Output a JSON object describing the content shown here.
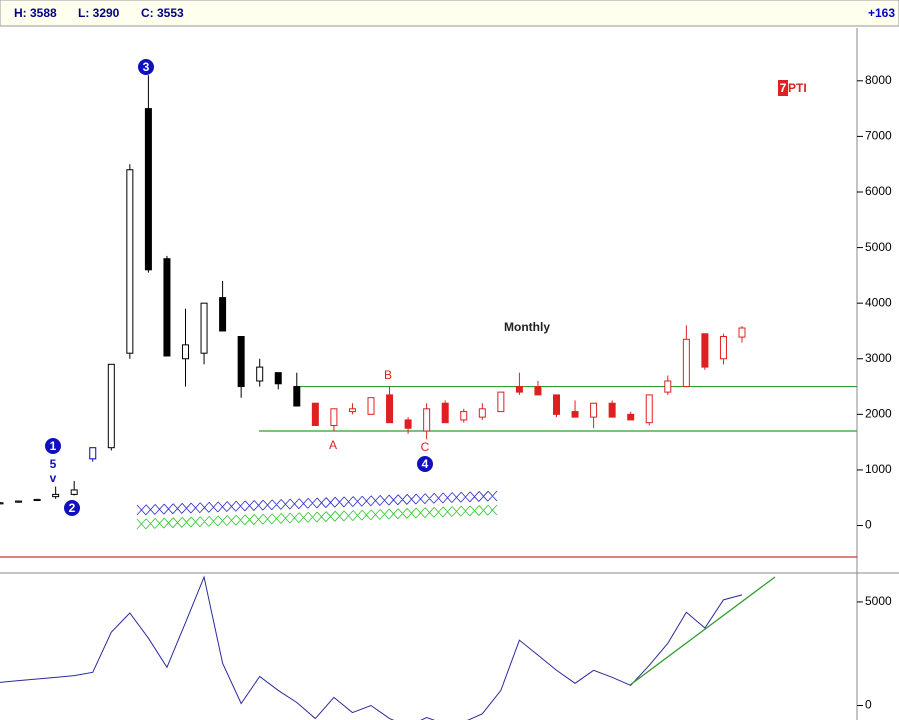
{
  "chart_data": [
    {
      "type": "candlestick",
      "header": [
        "H: 3588",
        "L: 3290",
        "C: 3553",
        "+163"
      ],
      "open": [
        390,
        420,
        450,
        520,
        560,
        1200,
        1400,
        3100,
        7500,
        4800,
        3000,
        3100,
        4100,
        3400,
        2600,
        2750,
        2500,
        2200,
        1800,
        2050,
        2000,
        2350,
        1900,
        1700,
        2200,
        1900,
        1950,
        2050,
        2500,
        2500,
        2350,
        2050,
        1950,
        2200,
        2000,
        1850,
        2400,
        2500,
        3450,
        3000,
        3390
      ],
      "high": [
        420,
        450,
        480,
        700,
        800,
        1400,
        2900,
        6500,
        8100,
        4850,
        3900,
        4000,
        4400,
        3400,
        3000,
        2750,
        2750,
        2200,
        2100,
        2200,
        2300,
        2500,
        1950,
        2200,
        2250,
        2100,
        2200,
        2400,
        2750,
        2600,
        2350,
        2250,
        2200,
        2250,
        2050,
        2350,
        2700,
        3600,
        3450,
        3450,
        3588
      ],
      "low": [
        380,
        410,
        440,
        480,
        540,
        1150,
        1350,
        3000,
        4550,
        3050,
        2500,
        2900,
        3500,
        2300,
        2500,
        2450,
        2150,
        1800,
        1700,
        2000,
        2000,
        1850,
        1650,
        1550,
        1850,
        1850,
        1900,
        2050,
        2350,
        2350,
        1950,
        1950,
        1750,
        1950,
        1900,
        1800,
        2350,
        2500,
        2800,
        2900,
        3290
      ],
      "close": [
        410,
        440,
        470,
        560,
        640,
        1400,
        2900,
        6400,
        4600,
        3050,
        3250,
        4000,
        3500,
        2500,
        2850,
        2550,
        2150,
        1800,
        2100,
        2100,
        2300,
        1850,
        1750,
        2100,
        1850,
        2050,
        2100,
        2400,
        2400,
        2350,
        2000,
        1950,
        2200,
        1950,
        1900,
        2350,
        2600,
        3350,
        2850,
        3400,
        3553
      ],
      "colors": [
        "#000000",
        "#000000",
        "#000000",
        "#000000",
        "#000000",
        "#0000cc",
        "#000000",
        "#000000",
        "#000000",
        "#000000",
        "#000000",
        "#000000",
        "#000000",
        "#000000",
        "#000000",
        "#000000",
        "#000000",
        "#e02020",
        "#e02020",
        "#e02020",
        "#e02020",
        "#e02020",
        "#e02020",
        "#e02020",
        "#e02020",
        "#e02020",
        "#e02020",
        "#e02020",
        "#e02020",
        "#e02020",
        "#e02020",
        "#e02020",
        "#e02020",
        "#e02020",
        "#e02020",
        "#e02020",
        "#e02020",
        "#e02020",
        "#e02020",
        "#e02020",
        "#e02020"
      ],
      "ylim": [
        -800,
        8950
      ],
      "yticks": [
        0,
        1000,
        2000,
        3000,
        4000,
        5000,
        6000,
        7000,
        8000
      ],
      "hlines": [
        {
          "value": 2500,
          "color": "#2e9e2e"
        },
        {
          "value": 1700,
          "color": "#2e9e2e"
        }
      ],
      "annotations": [
        "1",
        "5",
        "v",
        "2",
        "3",
        "4",
        "A",
        "B",
        "C",
        "Monthly",
        "7",
        "PTI"
      ]
    },
    {
      "type": "line",
      "values": [
        1117,
        1200,
        1280,
        1360,
        1440,
        1600,
        3540,
        4466,
        3250,
        1845,
        4000,
        6200,
        2040,
        97,
        1400,
        728,
        145,
        -630,
        390,
        -340,
        0,
        -630,
        -1000,
        -580,
        -900,
        -800,
        -400,
        728,
        3155,
        2430,
        1700,
        1070,
        1700,
        1360,
        970,
        1940,
        3000,
        4500,
        3740,
        5100,
        5340
      ],
      "color": "#2a2a9a",
      "ylim": [
        -700,
        6300
      ],
      "yticks": [
        0,
        5000
      ]
    }
  ]
}
